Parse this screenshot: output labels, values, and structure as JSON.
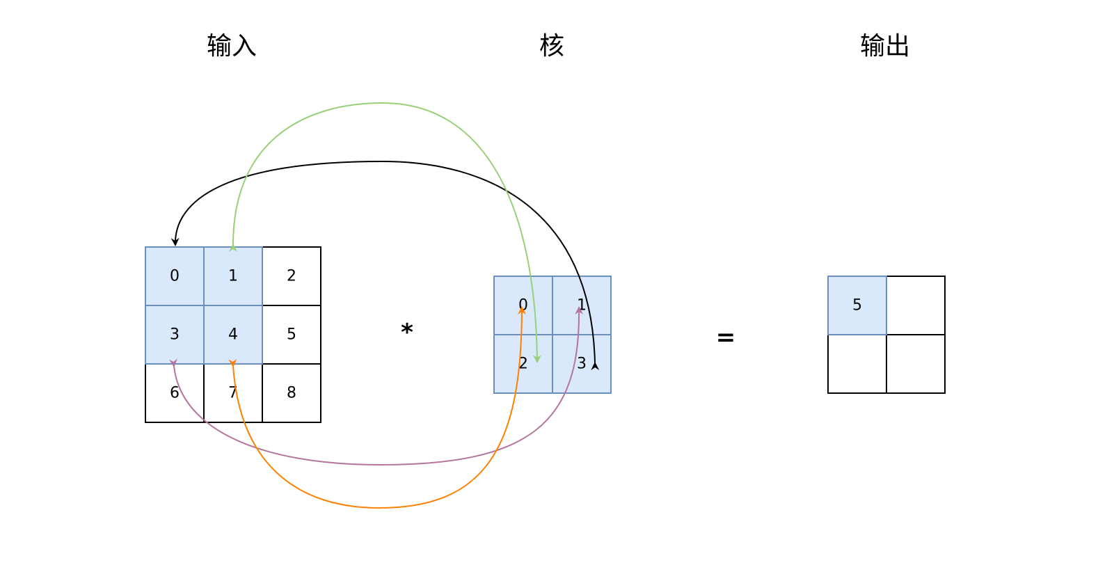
{
  "titles": {
    "input": "输入",
    "kernel": "核",
    "output": "输出"
  },
  "operators": {
    "convolve": "*",
    "equals": "="
  },
  "input_grid": {
    "rows": 3,
    "cols": 3,
    "values": [
      "0",
      "1",
      "2",
      "3",
      "4",
      "5",
      "6",
      "7",
      "8"
    ],
    "highlighted": [
      0,
      1,
      3,
      4
    ]
  },
  "kernel_grid": {
    "rows": 2,
    "cols": 2,
    "values": [
      "0",
      "1",
      "2",
      "3"
    ],
    "highlighted": [
      0,
      1,
      2,
      3
    ]
  },
  "output_grid": {
    "rows": 2,
    "cols": 2,
    "values": [
      "5",
      "",
      "",
      ""
    ],
    "highlighted": [
      0
    ]
  },
  "colors": {
    "highlight_fill": "#dae8fc",
    "highlight_stroke": "#6c8ebf",
    "cell_stroke": "#000000",
    "arrow_black": "#000000",
    "arrow_green": "#97d077",
    "arrow_purple": "#b5739d",
    "arrow_orange": "#ff8000"
  }
}
